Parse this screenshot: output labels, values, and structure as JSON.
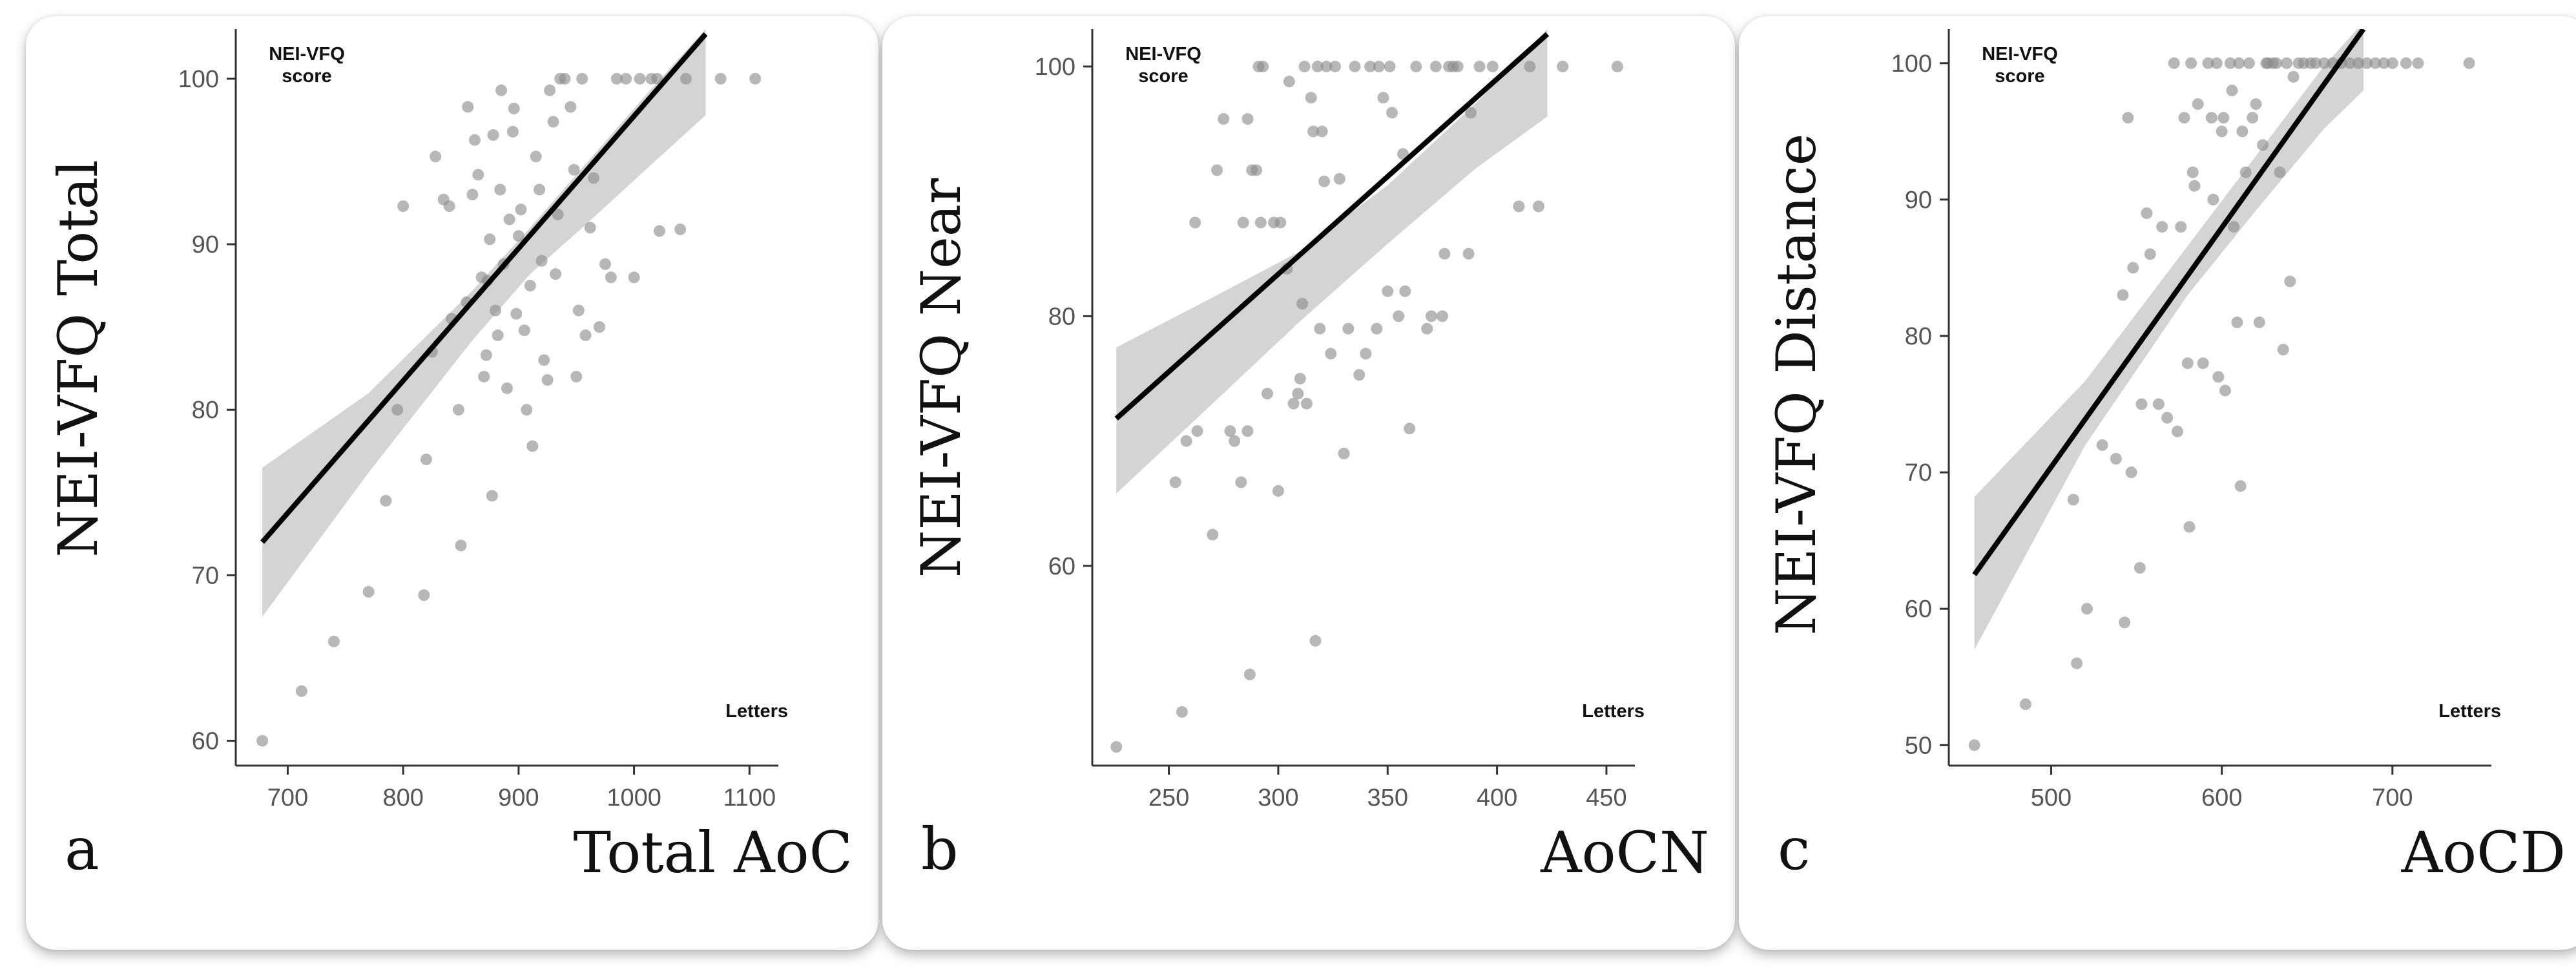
{
  "chart_data": [
    {
      "type": "scatter",
      "panel_label": "a",
      "ylabel": "NEI-VFQ Total",
      "xlabel": "Total AoC",
      "ylabel_note": [
        "NEI-VFQ",
        "score"
      ],
      "xlabel_note": "Letters",
      "xlim": [
        655,
        1125
      ],
      "ylim": [
        58.5,
        103
      ],
      "xticks": [
        700,
        800,
        900,
        1000,
        1100
      ],
      "yticks": [
        60,
        70,
        80,
        90,
        100
      ],
      "fit": {
        "x": [
          678,
          1062
        ],
        "y": [
          72,
          102.7
        ]
      },
      "band": {
        "upper": [
          [
            678,
            76.5
          ],
          [
            770,
            81.0
          ],
          [
            860,
            87.2
          ],
          [
            910,
            91.0
          ],
          [
            960,
            95.0
          ],
          [
            1010,
            99.0
          ],
          [
            1062,
            103.0
          ]
        ],
        "lower": [
          [
            678,
            67.5
          ],
          [
            770,
            76.2
          ],
          [
            860,
            84.2
          ],
          [
            910,
            88.2
          ],
          [
            960,
            91.3
          ],
          [
            1010,
            94.5
          ],
          [
            1062,
            97.8
          ]
        ]
      },
      "points": [
        [
          678,
          60
        ],
        [
          712,
          63
        ],
        [
          740,
          66
        ],
        [
          770,
          69
        ],
        [
          785,
          74.5
        ],
        [
          795,
          80
        ],
        [
          800,
          92.3
        ],
        [
          818,
          68.8
        ],
        [
          820,
          77
        ],
        [
          825,
          83.5
        ],
        [
          828,
          95.3
        ],
        [
          835,
          92.7
        ],
        [
          840,
          92.3
        ],
        [
          842,
          85.5
        ],
        [
          848,
          80
        ],
        [
          850,
          71.8
        ],
        [
          855,
          86.5
        ],
        [
          856,
          98.3
        ],
        [
          860,
          93
        ],
        [
          862,
          96.3
        ],
        [
          865,
          94.2
        ],
        [
          868,
          88
        ],
        [
          870,
          82
        ],
        [
          872,
          83.3
        ],
        [
          873,
          87.8
        ],
        [
          875,
          90.3
        ],
        [
          877,
          74.8
        ],
        [
          878,
          96.6
        ],
        [
          880,
          86
        ],
        [
          882,
          84.5
        ],
        [
          884,
          93.3
        ],
        [
          885,
          99.3
        ],
        [
          887,
          88.8
        ],
        [
          890,
          81.3
        ],
        [
          892,
          91.5
        ],
        [
          895,
          96.8
        ],
        [
          896,
          98.2
        ],
        [
          898,
          85.8
        ],
        [
          900,
          90.5
        ],
        [
          902,
          92.1
        ],
        [
          905,
          84.8
        ],
        [
          907,
          80
        ],
        [
          910,
          87.5
        ],
        [
          912,
          77.8
        ],
        [
          915,
          95.3
        ],
        [
          918,
          93.3
        ],
        [
          920,
          89
        ],
        [
          922,
          83
        ],
        [
          925,
          81.8
        ],
        [
          927,
          99.3
        ],
        [
          930,
          97.4
        ],
        [
          932,
          88.2
        ],
        [
          934,
          91.8
        ],
        [
          936,
          100
        ],
        [
          940,
          100
        ],
        [
          945,
          98.3
        ],
        [
          948,
          94.5
        ],
        [
          950,
          82
        ],
        [
          952,
          86
        ],
        [
          955,
          100
        ],
        [
          958,
          84.5
        ],
        [
          962,
          91
        ],
        [
          965,
          94
        ],
        [
          970,
          85
        ],
        [
          975,
          88.8
        ],
        [
          980,
          88
        ],
        [
          985,
          100
        ],
        [
          993,
          100
        ],
        [
          1000,
          88
        ],
        [
          1005,
          100
        ],
        [
          1015,
          100
        ],
        [
          1020,
          100
        ],
        [
          1022,
          90.8
        ],
        [
          1040,
          90.9
        ],
        [
          1045,
          100
        ],
        [
          1075,
          100
        ],
        [
          1105,
          100
        ]
      ]
    },
    {
      "type": "scatter",
      "panel_label": "b",
      "ylabel": "NEI-VFQ Near",
      "xlabel": "AoCN",
      "ylabel_note": [
        "NEI-VFQ",
        "score"
      ],
      "xlabel_note": "Letters",
      "xlim": [
        215,
        463
      ],
      "ylim": [
        44,
        103
      ],
      "xticks": [
        250,
        300,
        350,
        400,
        450
      ],
      "yticks": [
        60,
        80,
        100
      ],
      "fit": {
        "x": [
          226,
          423
        ],
        "y": [
          71.8,
          102.6
        ]
      },
      "band": {
        "upper": [
          [
            226,
            77.5
          ],
          [
            270,
            81.5
          ],
          [
            310,
            85.2
          ],
          [
            350,
            90.5
          ],
          [
            390,
            97.0
          ],
          [
            423,
            103.0
          ]
        ],
        "lower": [
          [
            226,
            65.8
          ],
          [
            270,
            73.0
          ],
          [
            310,
            79.6
          ],
          [
            350,
            85.8
          ],
          [
            390,
            91.8
          ],
          [
            423,
            96.0
          ]
        ]
      },
      "points": [
        [
          226,
          45.5
        ],
        [
          253,
          66.7
        ],
        [
          256,
          48.3
        ],
        [
          258,
          70
        ],
        [
          262,
          87.5
        ],
        [
          263,
          70.8
        ],
        [
          270,
          62.5
        ],
        [
          272,
          91.7
        ],
        [
          275,
          95.8
        ],
        [
          278,
          70.8
        ],
        [
          280,
          70
        ],
        [
          283,
          66.7
        ],
        [
          284,
          87.5
        ],
        [
          286,
          95.8
        ],
        [
          286,
          70.8
        ],
        [
          287,
          51.3
        ],
        [
          288,
          91.7
        ],
        [
          290,
          91.7
        ],
        [
          291,
          100
        ],
        [
          292,
          87.5
        ],
        [
          293,
          100
        ],
        [
          295,
          73.8
        ],
        [
          298,
          87.5
        ],
        [
          300,
          66
        ],
        [
          301,
          87.5
        ],
        [
          304,
          83.8
        ],
        [
          305,
          98.8
        ],
        [
          307,
          73
        ],
        [
          309,
          73.8
        ],
        [
          310,
          75
        ],
        [
          311,
          81
        ],
        [
          312,
          100
        ],
        [
          313,
          73
        ],
        [
          315,
          97.5
        ],
        [
          316,
          94.8
        ],
        [
          317,
          54
        ],
        [
          318,
          100
        ],
        [
          319,
          79
        ],
        [
          320,
          94.8
        ],
        [
          321,
          90.8
        ],
        [
          322,
          100
        ],
        [
          324,
          77
        ],
        [
          326,
          100
        ],
        [
          328,
          91
        ],
        [
          330,
          69
        ],
        [
          332,
          79
        ],
        [
          335,
          100
        ],
        [
          337,
          75.3
        ],
        [
          340,
          77
        ],
        [
          342,
          100
        ],
        [
          345,
          79
        ],
        [
          346,
          100
        ],
        [
          348,
          97.5
        ],
        [
          350,
          82
        ],
        [
          351,
          100
        ],
        [
          352,
          96.3
        ],
        [
          355,
          80
        ],
        [
          357,
          93
        ],
        [
          358,
          82
        ],
        [
          360,
          71
        ],
        [
          363,
          100
        ],
        [
          368,
          79
        ],
        [
          370,
          80
        ],
        [
          372,
          100
        ],
        [
          375,
          80
        ],
        [
          376,
          85
        ],
        [
          378,
          100
        ],
        [
          380,
          100
        ],
        [
          382,
          100
        ],
        [
          387,
          85
        ],
        [
          388,
          96.3
        ],
        [
          392,
          100
        ],
        [
          398,
          100
        ],
        [
          410,
          88.8
        ],
        [
          415,
          100
        ],
        [
          419,
          88.8
        ],
        [
          430,
          100
        ],
        [
          455,
          100
        ]
      ]
    },
    {
      "type": "scatter",
      "panel_label": "c",
      "ylabel": "NEI-VFQ Distance",
      "xlabel": "AoCD",
      "ylabel_note": [
        "NEI-VFQ",
        "score"
      ],
      "xlabel_note": "Letters",
      "xlim": [
        440,
        758
      ],
      "ylim": [
        48.5,
        102.5
      ],
      "xticks": [
        500,
        600,
        700
      ],
      "yticks": [
        50,
        60,
        70,
        80,
        90,
        100
      ],
      "fit": {
        "x": [
          455,
          683
        ],
        "y": [
          62.5,
          102.5
        ]
      },
      "band": {
        "upper": [
          [
            455,
            68.2
          ],
          [
            520,
            76.7
          ],
          [
            580,
            86.6
          ],
          [
            620,
            93.2
          ],
          [
            660,
            99.8
          ],
          [
            683,
            103.0
          ]
        ],
        "lower": [
          [
            455,
            57.0
          ],
          [
            520,
            72.0
          ],
          [
            580,
            83.0
          ],
          [
            620,
            89.2
          ],
          [
            660,
            95.2
          ],
          [
            683,
            98.0
          ]
        ]
      },
      "points": [
        [
          455,
          50
        ],
        [
          485,
          53
        ],
        [
          513,
          68
        ],
        [
          515,
          56
        ],
        [
          521,
          60
        ],
        [
          530,
          72
        ],
        [
          538,
          71
        ],
        [
          542,
          83
        ],
        [
          543,
          59
        ],
        [
          545,
          96
        ],
        [
          547,
          70
        ],
        [
          548,
          85
        ],
        [
          552,
          63
        ],
        [
          553,
          75
        ],
        [
          556,
          89
        ],
        [
          558,
          86
        ],
        [
          563,
          75
        ],
        [
          565,
          88
        ],
        [
          568,
          74
        ],
        [
          572,
          100
        ],
        [
          574,
          73
        ],
        [
          576,
          88
        ],
        [
          578,
          96
        ],
        [
          580,
          78
        ],
        [
          581,
          66
        ],
        [
          582,
          100
        ],
        [
          583,
          92
        ],
        [
          584,
          91
        ],
        [
          586,
          97
        ],
        [
          589,
          78
        ],
        [
          592,
          100
        ],
        [
          594,
          96
        ],
        [
          595,
          90
        ],
        [
          597,
          100
        ],
        [
          598,
          77
        ],
        [
          600,
          95
        ],
        [
          601,
          96
        ],
        [
          602,
          76
        ],
        [
          605,
          100
        ],
        [
          606,
          98
        ],
        [
          607,
          88
        ],
        [
          609,
          81
        ],
        [
          610,
          100
        ],
        [
          611,
          69
        ],
        [
          612,
          95
        ],
        [
          614,
          92
        ],
        [
          616,
          100
        ],
        [
          618,
          96
        ],
        [
          620,
          97
        ],
        [
          622,
          81
        ],
        [
          624,
          94
        ],
        [
          626,
          100
        ],
        [
          627,
          100
        ],
        [
          630,
          100
        ],
        [
          632,
          100
        ],
        [
          634,
          92
        ],
        [
          636,
          79
        ],
        [
          638,
          100
        ],
        [
          640,
          84
        ],
        [
          642,
          99
        ],
        [
          645,
          100
        ],
        [
          648,
          100
        ],
        [
          652,
          100
        ],
        [
          655,
          100
        ],
        [
          660,
          100
        ],
        [
          665,
          100
        ],
        [
          670,
          100
        ],
        [
          675,
          100
        ],
        [
          680,
          100
        ],
        [
          685,
          100
        ],
        [
          690,
          100
        ],
        [
          695,
          100
        ],
        [
          700,
          100
        ],
        [
          708,
          100
        ],
        [
          715,
          100
        ],
        [
          745,
          100
        ]
      ]
    }
  ]
}
